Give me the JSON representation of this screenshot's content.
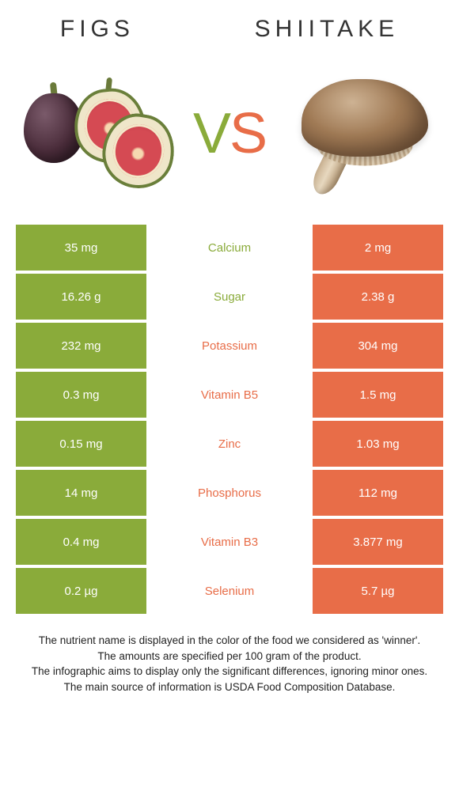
{
  "colors": {
    "left_cell": "#8aab3a",
    "right_cell": "#e86d48",
    "mid_green": "#8aab3a",
    "mid_orange": "#e86d48"
  },
  "foods": {
    "left": {
      "name": "FIGS"
    },
    "right": {
      "name": "SHIITAKE"
    }
  },
  "vs": {
    "v": "V",
    "s": "S"
  },
  "rows": [
    {
      "nutrient": "Calcium",
      "left": "35 mg",
      "right": "2 mg",
      "winner": "left"
    },
    {
      "nutrient": "Sugar",
      "left": "16.26 g",
      "right": "2.38 g",
      "winner": "left"
    },
    {
      "nutrient": "Potassium",
      "left": "232 mg",
      "right": "304 mg",
      "winner": "right"
    },
    {
      "nutrient": "Vitamin B5",
      "left": "0.3 mg",
      "right": "1.5 mg",
      "winner": "right"
    },
    {
      "nutrient": "Zinc",
      "left": "0.15 mg",
      "right": "1.03 mg",
      "winner": "right"
    },
    {
      "nutrient": "Phosphorus",
      "left": "14 mg",
      "right": "112 mg",
      "winner": "right"
    },
    {
      "nutrient": "Vitamin B3",
      "left": "0.4 mg",
      "right": "3.877 mg",
      "winner": "right"
    },
    {
      "nutrient": "Selenium",
      "left": "0.2 µg",
      "right": "5.7 µg",
      "winner": "right"
    }
  ],
  "footer": {
    "l1": "The nutrient name is displayed in the color of the food we considered as 'winner'.",
    "l2": "The amounts are specified per 100 gram of the product.",
    "l3": "The infographic aims to display only the significant differences, ignoring minor ones.",
    "l4": "The main source of information is USDA Food Composition Database."
  }
}
